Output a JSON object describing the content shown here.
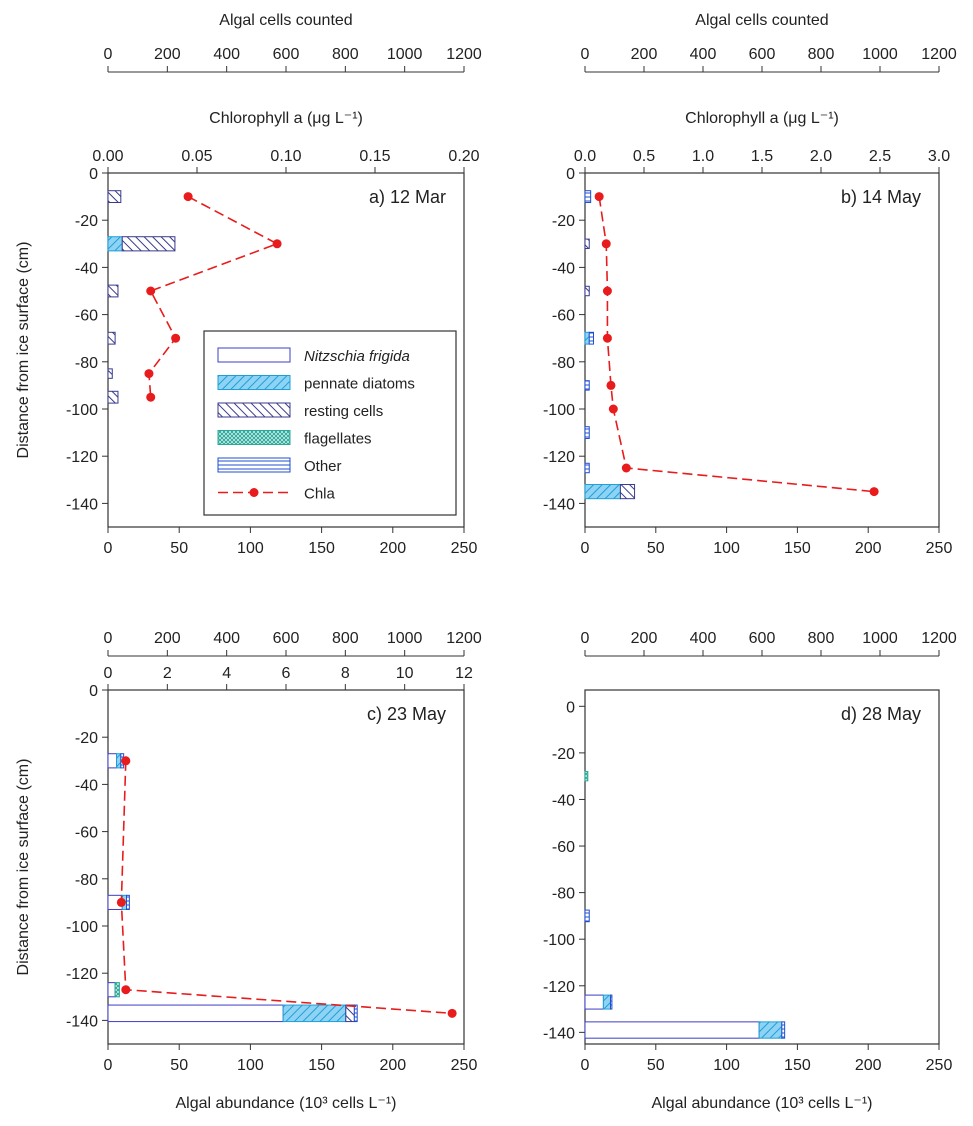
{
  "colors": {
    "nitzschia_stroke": "#3c3cc8",
    "pennate_fill": "#8fd3f4",
    "pennate_stroke": "#1e9fd8",
    "resting_stroke": "#3a3a8c",
    "flagellate_stroke": "#2aa89a",
    "other_stroke": "#1f4fd0",
    "chla": "#e81c1c",
    "axis": "#333333"
  },
  "legend": [
    {
      "key": "nitzschia",
      "label": "Nitzschia frigida",
      "italic": true
    },
    {
      "key": "pennate",
      "label": "pennate diatoms"
    },
    {
      "key": "resting",
      "label": "resting cells"
    },
    {
      "key": "flagellates",
      "label": "flagellates"
    },
    {
      "key": "other",
      "label": "Other"
    },
    {
      "key": "chla",
      "label": "Chla"
    }
  ],
  "chart_data": [
    {
      "type": "bar",
      "panel": "a) 12 Mar",
      "ylabel": "Distance from ice surface (cm)",
      "xlabel": "",
      "top_axis_1_label": "Algal cells counted",
      "top_axis_1_ticks": [
        "0",
        "200",
        "400",
        "600",
        "800",
        "1000",
        "1200"
      ],
      "top_axis_2_label": "Chlorophyll a (μg L⁻¹)",
      "top_axis_2_ticks": [
        "0.00",
        "0.05",
        "0.10",
        "0.15",
        "0.20"
      ],
      "xlim": [
        0,
        250
      ],
      "ylim": [
        -150,
        0
      ],
      "x_ticks": [
        0,
        50,
        100,
        150,
        200,
        250
      ],
      "y_ticks": [
        0,
        -20,
        -40,
        -60,
        -80,
        -100,
        -120,
        -140
      ],
      "bars": [
        {
          "depth": -10,
          "thickness": 5,
          "segments": [
            {
              "key": "resting",
              "value": 9
            }
          ]
        },
        {
          "depth": -30,
          "thickness": 6,
          "segments": [
            {
              "key": "pennate",
              "value": 10
            },
            {
              "key": "resting",
              "value": 37
            }
          ]
        },
        {
          "depth": -50,
          "thickness": 5,
          "segments": [
            {
              "key": "resting",
              "value": 7
            }
          ]
        },
        {
          "depth": -70,
          "thickness": 5,
          "segments": [
            {
              "key": "resting",
              "value": 5
            }
          ]
        },
        {
          "depth": -85,
          "thickness": 4,
          "segments": [
            {
              "key": "resting",
              "value": 3
            }
          ]
        },
        {
          "depth": -95,
          "thickness": 5,
          "segments": [
            {
              "key": "resting",
              "value": 7
            }
          ]
        }
      ],
      "chla": {
        "depth": [
          -10,
          -30,
          -50,
          -70,
          -85,
          -95
        ],
        "value": [
          0.045,
          0.095,
          0.024,
          0.038,
          0.023,
          0.024
        ],
        "scale_max": 0.2
      },
      "has_legend": true
    },
    {
      "type": "bar",
      "panel": "b) 14 May",
      "ylabel": "",
      "xlabel": "",
      "top_axis_1_label": "Algal cells counted",
      "top_axis_1_ticks": [
        "0",
        "200",
        "400",
        "600",
        "800",
        "1000",
        "1200"
      ],
      "top_axis_2_label": "Chlorophyll a (μg L⁻¹)",
      "top_axis_2_ticks": [
        "0.0",
        "0.5",
        "1.0",
        "1.5",
        "2.0",
        "2.5",
        "3.0"
      ],
      "xlim": [
        0,
        250
      ],
      "ylim": [
        -150,
        0
      ],
      "x_ticks": [
        0,
        50,
        100,
        150,
        200,
        250
      ],
      "y_ticks": [
        0,
        -20,
        -40,
        -60,
        -80,
        -100,
        -120,
        -140
      ],
      "bars": [
        {
          "depth": -10,
          "thickness": 5,
          "segments": [
            {
              "key": "other",
              "value": 4
            }
          ]
        },
        {
          "depth": -30,
          "thickness": 4,
          "segments": [
            {
              "key": "resting",
              "value": 3
            }
          ]
        },
        {
          "depth": -50,
          "thickness": 4,
          "segments": [
            {
              "key": "resting",
              "value": 3
            }
          ]
        },
        {
          "depth": -70,
          "thickness": 5,
          "segments": [
            {
              "key": "pennate",
              "value": 3
            },
            {
              "key": "other",
              "value": 3
            }
          ]
        },
        {
          "depth": -90,
          "thickness": 4,
          "segments": [
            {
              "key": "other",
              "value": 3
            }
          ]
        },
        {
          "depth": -110,
          "thickness": 5,
          "segments": [
            {
              "key": "other",
              "value": 3
            }
          ]
        },
        {
          "depth": -125,
          "thickness": 4,
          "segments": [
            {
              "key": "other",
              "value": 3
            }
          ]
        },
        {
          "depth": -135,
          "thickness": 6,
          "segments": [
            {
              "key": "pennate",
              "value": 25
            },
            {
              "key": "resting",
              "value": 10
            }
          ]
        }
      ],
      "chla": {
        "depth": [
          -10,
          -30,
          -50,
          -70,
          -90,
          -100,
          -125,
          -135
        ],
        "value": [
          0.12,
          0.18,
          0.19,
          0.19,
          0.22,
          0.24,
          0.35,
          2.45
        ],
        "scale_max": 3.0
      },
      "has_legend": false
    },
    {
      "type": "bar",
      "panel": "c) 23 May",
      "ylabel": "Distance from ice surface (cm)",
      "xlabel": "Algal abundance (10³ cells L⁻¹)",
      "top_axis_1_label": "",
      "top_axis_1_ticks": [
        "0",
        "200",
        "400",
        "600",
        "800",
        "1000",
        "1200"
      ],
      "top_axis_2_label": "",
      "top_axis_2_ticks": [
        "0",
        "2",
        "4",
        "6",
        "8",
        "10",
        "12"
      ],
      "xlim": [
        0,
        250
      ],
      "ylim": [
        -150,
        0
      ],
      "x_ticks": [
        0,
        50,
        100,
        150,
        200,
        250
      ],
      "y_ticks": [
        0,
        -20,
        -40,
        -60,
        -80,
        -100,
        -120,
        -140
      ],
      "bars": [
        {
          "depth": -30,
          "thickness": 6,
          "segments": [
            {
              "key": "nitzschia",
              "value": 6
            },
            {
              "key": "pennate",
              "value": 3
            },
            {
              "key": "other",
              "value": 2
            }
          ]
        },
        {
          "depth": -90,
          "thickness": 6,
          "segments": [
            {
              "key": "nitzschia",
              "value": 10
            },
            {
              "key": "pennate",
              "value": 3
            },
            {
              "key": "other",
              "value": 2
            }
          ]
        },
        {
          "depth": -127,
          "thickness": 6,
          "segments": [
            {
              "key": "nitzschia",
              "value": 5
            },
            {
              "key": "flagellates",
              "value": 3
            }
          ]
        },
        {
          "depth": -137,
          "thickness": 7,
          "segments": [
            {
              "key": "nitzschia",
              "value": 123
            },
            {
              "key": "pennate",
              "value": 44
            },
            {
              "key": "resting",
              "value": 6
            },
            {
              "key": "other",
              "value": 2
            }
          ]
        }
      ],
      "chla": {
        "depth": [
          -30,
          -90,
          -127,
          -137
        ],
        "value": [
          0.6,
          0.45,
          0.6,
          11.6
        ],
        "scale_max": 12
      },
      "has_legend": false
    },
    {
      "type": "bar",
      "panel": "d) 28 May",
      "ylabel": "",
      "xlabel": "Algal abundance (10³ cells L⁻¹)",
      "top_axis_1_label": "",
      "top_axis_1_ticks": [
        "0",
        "200",
        "400",
        "600",
        "800",
        "1000",
        "1200"
      ],
      "top_axis_2_label": "",
      "top_axis_2_ticks": [],
      "xlim": [
        0,
        250
      ],
      "ylim": [
        -145,
        7
      ],
      "x_ticks": [
        0,
        50,
        100,
        150,
        200,
        250
      ],
      "y_ticks": [
        0,
        -20,
        -40,
        -60,
        -80,
        -100,
        -120,
        -140
      ],
      "bars": [
        {
          "depth": -30,
          "thickness": 4,
          "segments": [
            {
              "key": "flagellates",
              "value": 2
            }
          ]
        },
        {
          "depth": -90,
          "thickness": 5,
          "segments": [
            {
              "key": "other",
              "value": 3
            }
          ]
        },
        {
          "depth": -127,
          "thickness": 6,
          "segments": [
            {
              "key": "nitzschia",
              "value": 13
            },
            {
              "key": "pennate",
              "value": 5
            },
            {
              "key": "other",
              "value": 1
            }
          ]
        },
        {
          "depth": -139,
          "thickness": 7,
          "segments": [
            {
              "key": "nitzschia",
              "value": 123
            },
            {
              "key": "pennate",
              "value": 16
            },
            {
              "key": "other",
              "value": 2
            }
          ]
        }
      ],
      "chla": null,
      "has_legend": false
    }
  ]
}
